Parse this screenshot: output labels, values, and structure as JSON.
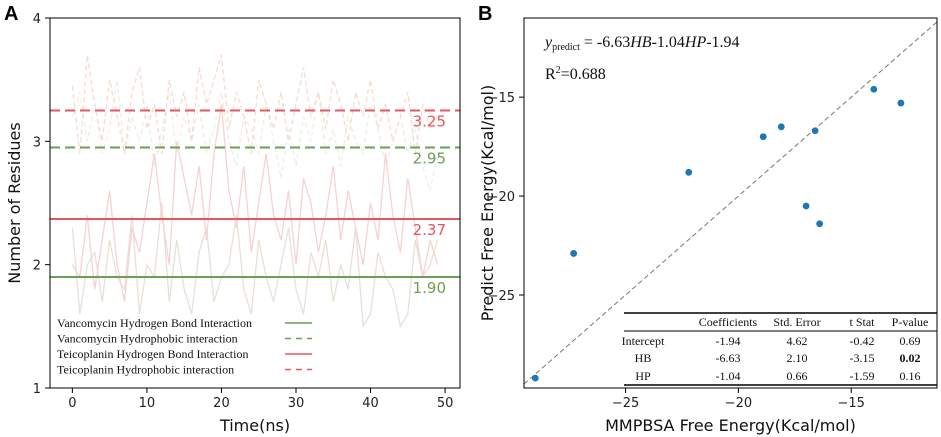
{
  "chart_data": [
    {
      "panel": "A",
      "type": "line",
      "xlabel": "Time(ns)",
      "ylabel": "Number of Residues",
      "xlim": [
        -3,
        52
      ],
      "ylim": [
        1,
        4
      ],
      "xticks": [
        "0",
        "10",
        "20",
        "30",
        "40",
        "50"
      ],
      "yticks": [
        "1",
        "2",
        "3",
        "4"
      ],
      "x": [
        0,
        1,
        2,
        3,
        4,
        5,
        6,
        7,
        8,
        9,
        10,
        11,
        12,
        13,
        14,
        15,
        16,
        17,
        18,
        19,
        20,
        21,
        22,
        23,
        24,
        25,
        26,
        27,
        28,
        29,
        30,
        31,
        32,
        33,
        34,
        35,
        36,
        37,
        38,
        39,
        40,
        41,
        42,
        43,
        44,
        45,
        46,
        47,
        48,
        49
      ],
      "series": [
        {
          "name": "Vancomycin Hydrogen Bond Interaction",
          "color": "#e9e0d5",
          "style": "solid",
          "values": [
            2.3,
            1.6,
            2.0,
            2.1,
            1.7,
            2.2,
            1.9,
            1.8,
            2.4,
            1.6,
            2.0,
            1.9,
            2.5,
            1.7,
            2.2,
            1.8,
            1.6,
            2.1,
            2.3,
            1.7,
            1.9,
            2.0,
            2.4,
            1.8,
            1.6,
            2.2,
            1.9,
            1.7,
            2.0,
            2.3,
            1.8,
            1.6,
            2.1,
            1.9,
            2.2,
            1.7,
            2.0,
            1.8,
            2.3,
            1.5,
            1.6,
            2.1,
            1.9,
            1.8,
            1.5,
            1.6,
            2.2,
            1.9,
            2.0,
            2.2
          ]
        },
        {
          "name": "Vancomycin Hydrophobic interaction",
          "color": "#eef0e4",
          "style": "dashed",
          "values": [
            3.2,
            3.4,
            3.0,
            3.3,
            2.9,
            3.1,
            3.5,
            2.9,
            3.2,
            3.0,
            3.3,
            2.8,
            3.1,
            3.4,
            2.9,
            3.2,
            3.0,
            3.3,
            2.9,
            3.1,
            3.4,
            3.0,
            2.8,
            3.2,
            3.1,
            2.9,
            3.3,
            3.0,
            2.7,
            3.1,
            2.8,
            3.2,
            3.0,
            3.4,
            2.9,
            3.1,
            2.8,
            3.2,
            3.0,
            2.9,
            3.3,
            3.1,
            2.8,
            3.0,
            3.2,
            2.9,
            3.1,
            2.8,
            2.6,
            2.9
          ]
        },
        {
          "name": "Teicoplanin Hydrogen Bond Interaction",
          "color": "#f6d2d4",
          "style": "solid",
          "values": [
            2.0,
            1.9,
            2.4,
            1.8,
            2.2,
            2.6,
            2.0,
            1.7,
            2.3,
            2.1,
            2.5,
            2.9,
            2.4,
            2.0,
            3.0,
            2.7,
            2.4,
            2.8,
            2.2,
            2.9,
            3.3,
            2.6,
            2.3,
            2.8,
            2.1,
            2.5,
            2.9,
            2.4,
            2.2,
            2.6,
            2.0,
            2.7,
            2.5,
            2.1,
            2.4,
            2.8,
            2.2,
            2.6,
            2.3,
            2.0,
            2.5,
            2.2,
            2.9,
            2.4,
            2.1,
            2.7,
            2.3,
            1.9,
            2.2,
            2.0
          ]
        },
        {
          "name": "Teicoplanin Hydrophobic interaction",
          "color": "#f5dcd3",
          "style": "dashed",
          "values": [
            3.45,
            2.9,
            3.7,
            3.3,
            3.0,
            3.5,
            3.2,
            2.9,
            3.4,
            3.6,
            3.1,
            3.3,
            2.9,
            3.5,
            3.2,
            3.4,
            3.0,
            3.6,
            3.3,
            3.5,
            3.7,
            3.1,
            3.4,
            3.2,
            2.9,
            3.5,
            3.3,
            3.1,
            3.4,
            3.0,
            3.3,
            3.6,
            3.2,
            3.4,
            3.1,
            3.5,
            3.3,
            3.0,
            3.4,
            3.2,
            3.5,
            3.1,
            3.3,
            3.0,
            3.2,
            3.4,
            2.9,
            3.3,
            3.1,
            3.2
          ]
        }
      ],
      "reference_lines": [
        {
          "series": "Vancomycin Hydrogen Bond Interaction",
          "value": 1.9,
          "label": "1.90",
          "color": "#6e9e55",
          "style": "solid"
        },
        {
          "series": "Vancomycin Hydrophobic interaction",
          "value": 2.95,
          "label": "2.95",
          "color": "#6e9e55",
          "style": "dashed"
        },
        {
          "series": "Teicoplanin Hydrogen Bond Interaction",
          "value": 2.37,
          "label": "2.37",
          "color": "#e5575e",
          "style": "solid"
        },
        {
          "series": "Teicoplanin Hydrophobic interaction",
          "value": 3.25,
          "label": "3.25",
          "color": "#e5575e",
          "style": "dashed"
        }
      ],
      "legend": {
        "position": "bottom-left",
        "entries": [
          {
            "label": "Vancomycin Hydrogen Bond Interaction",
            "color": "#6e9e55",
            "style": "solid"
          },
          {
            "label": "Vancomycin Hydrophobic interaction",
            "color": "#6e9e55",
            "style": "dashed"
          },
          {
            "label": "Teicoplanin  Hydrogen Bond Interaction",
            "color": "#e5575e",
            "style": "solid"
          },
          {
            "label": "Teicoplanin  Hydrophobic interaction",
            "color": "#e5575e",
            "style": "dashed"
          }
        ]
      }
    },
    {
      "panel": "B",
      "type": "scatter",
      "xlabel": "MMPBSA Free Energy(Kcal/mol)",
      "ylabel": "Predict Free Energy(Kcal/mol)",
      "xlim": [
        -29.5,
        -11.2
      ],
      "ylim": [
        -29.7,
        -11.0
      ],
      "xticks": [
        -25,
        -20,
        -15
      ],
      "yticks": [
        -25,
        -20,
        -15
      ],
      "point_color": "#1f77b4",
      "points": [
        {
          "x": -29.0,
          "y": -29.2
        },
        {
          "x": -27.3,
          "y": -22.9
        },
        {
          "x": -22.2,
          "y": -18.8
        },
        {
          "x": -18.9,
          "y": -17.0
        },
        {
          "x": -18.1,
          "y": -16.5
        },
        {
          "x": -17.0,
          "y": -20.5
        },
        {
          "x": -16.4,
          "y": -21.4
        },
        {
          "x": -16.6,
          "y": -16.7
        },
        {
          "x": -14.0,
          "y": -14.6
        },
        {
          "x": -12.8,
          "y": -15.3
        }
      ],
      "diagonal": {
        "style": "dashed",
        "color": "#777777",
        "label": "y = x"
      },
      "equation": {
        "lhs": "y",
        "lhs_sub": "predict",
        "rhs_prefix": " = -6.63",
        "hb": "HB",
        "mid": "-1.04",
        "hp": "HP",
        "rhs_suffix": "-1.94",
        "r2_label": "R",
        "r2_sup": "2",
        "r2_value": "=0.688"
      },
      "regression_table": {
        "headers": [
          "",
          "Coefficients",
          "Std. Error",
          "t Stat",
          "P-value"
        ],
        "rows": [
          [
            "Intercept",
            "-1.94",
            "4.62",
            "-0.42",
            "0.69"
          ],
          [
            "HB",
            "-6.63",
            "2.10",
            "-3.15",
            "0.02"
          ],
          [
            "HP",
            "-1.04",
            "0.66",
            "-1.59",
            "0.16"
          ]
        ],
        "highlight": {
          "row": 1,
          "col": 4,
          "color": "#3a78c3"
        }
      }
    }
  ],
  "labels": {
    "panel_a": "A",
    "panel_b": "B"
  }
}
